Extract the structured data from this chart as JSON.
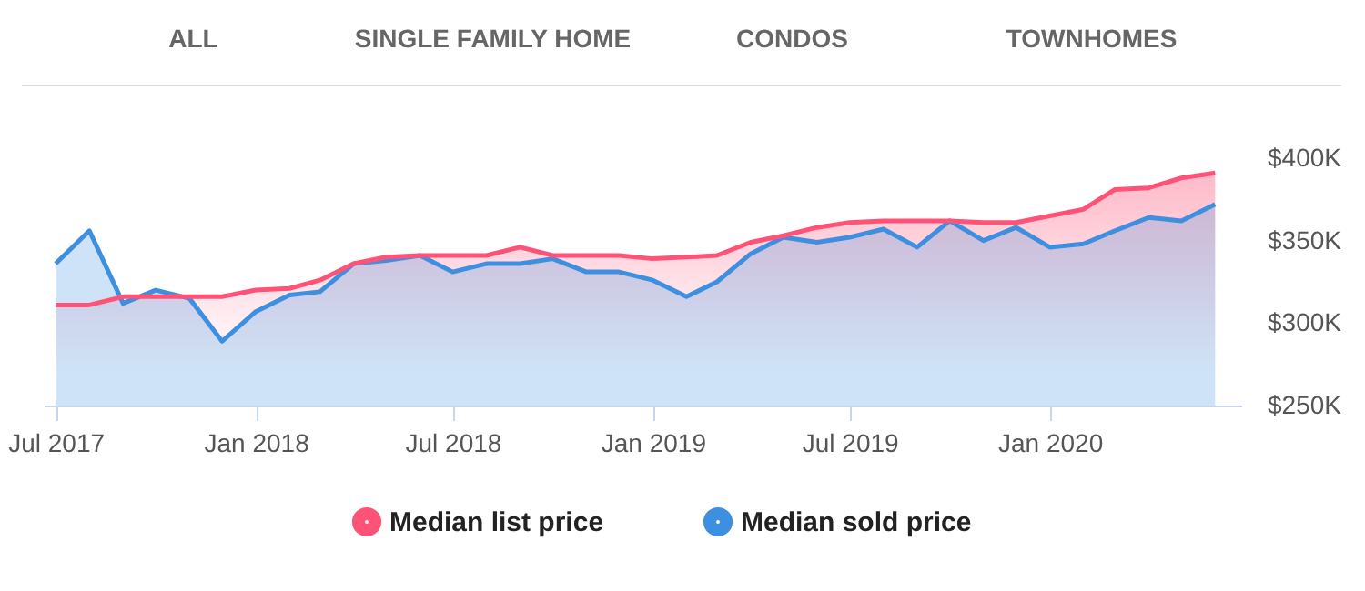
{
  "chart_data": {
    "type": "area",
    "annotations": [
      "ALL",
      "SINGLE FAMILY HOME",
      "CONDOS",
      "TOWNHOMES"
    ],
    "x": [
      "2017-07",
      "2017-08",
      "2017-09",
      "2017-10",
      "2017-11",
      "2017-12",
      "2018-01",
      "2018-02",
      "2018-03",
      "2018-04",
      "2018-05",
      "2018-06",
      "2018-07",
      "2018-08",
      "2018-09",
      "2018-10",
      "2018-11",
      "2018-12",
      "2019-01",
      "2019-02",
      "2019-03",
      "2019-04",
      "2019-05",
      "2019-06",
      "2019-07",
      "2019-08",
      "2019-09",
      "2019-10",
      "2019-11",
      "2019-12",
      "2020-01",
      "2020-02",
      "2020-03",
      "2020-04",
      "2020-05",
      "2020-06"
    ],
    "series": [
      {
        "name": "Median list price",
        "color": "#ff5277",
        "values": [
          311,
          311,
          316,
          316,
          316,
          316,
          320,
          321,
          326,
          336,
          340,
          341,
          341,
          341,
          346,
          341,
          341,
          341,
          339,
          340,
          341,
          349,
          353,
          358,
          361,
          362,
          362,
          362,
          361,
          361,
          365,
          369,
          381,
          382,
          388,
          391
        ]
      },
      {
        "name": "Median sold price",
        "color": "#3d8fe0",
        "values": [
          336,
          356,
          312,
          320,
          315,
          289,
          307,
          317,
          319,
          336,
          338,
          341,
          331,
          336,
          336,
          339,
          331,
          331,
          326,
          316,
          325,
          342,
          352,
          349,
          352,
          357,
          346,
          362,
          350,
          358,
          346,
          348,
          356,
          364,
          362,
          372
        ]
      }
    ],
    "xlim": [
      "2017-06-20",
      "2020-06-25"
    ],
    "xticks": [
      {
        "value": "2017-07",
        "label": "Jul 2017"
      },
      {
        "value": "2018-01",
        "label": "Jan 2018"
      },
      {
        "value": "2018-07",
        "label": "Jul 2018"
      },
      {
        "value": "2019-01",
        "label": "Jan 2019"
      },
      {
        "value": "2019-07",
        "label": "Jul 2019"
      },
      {
        "value": "2020-01",
        "label": "Jan 2020"
      }
    ],
    "ylim": [
      250,
      400
    ],
    "yticks": [
      {
        "value": 250,
        "label": "$250K"
      },
      {
        "value": 300,
        "label": "$300K"
      },
      {
        "value": 350,
        "label": "$350K"
      },
      {
        "value": 400,
        "label": "$400K"
      }
    ],
    "grid": false,
    "legend": "bottom",
    "marker": "none",
    "line_style": "solid"
  }
}
